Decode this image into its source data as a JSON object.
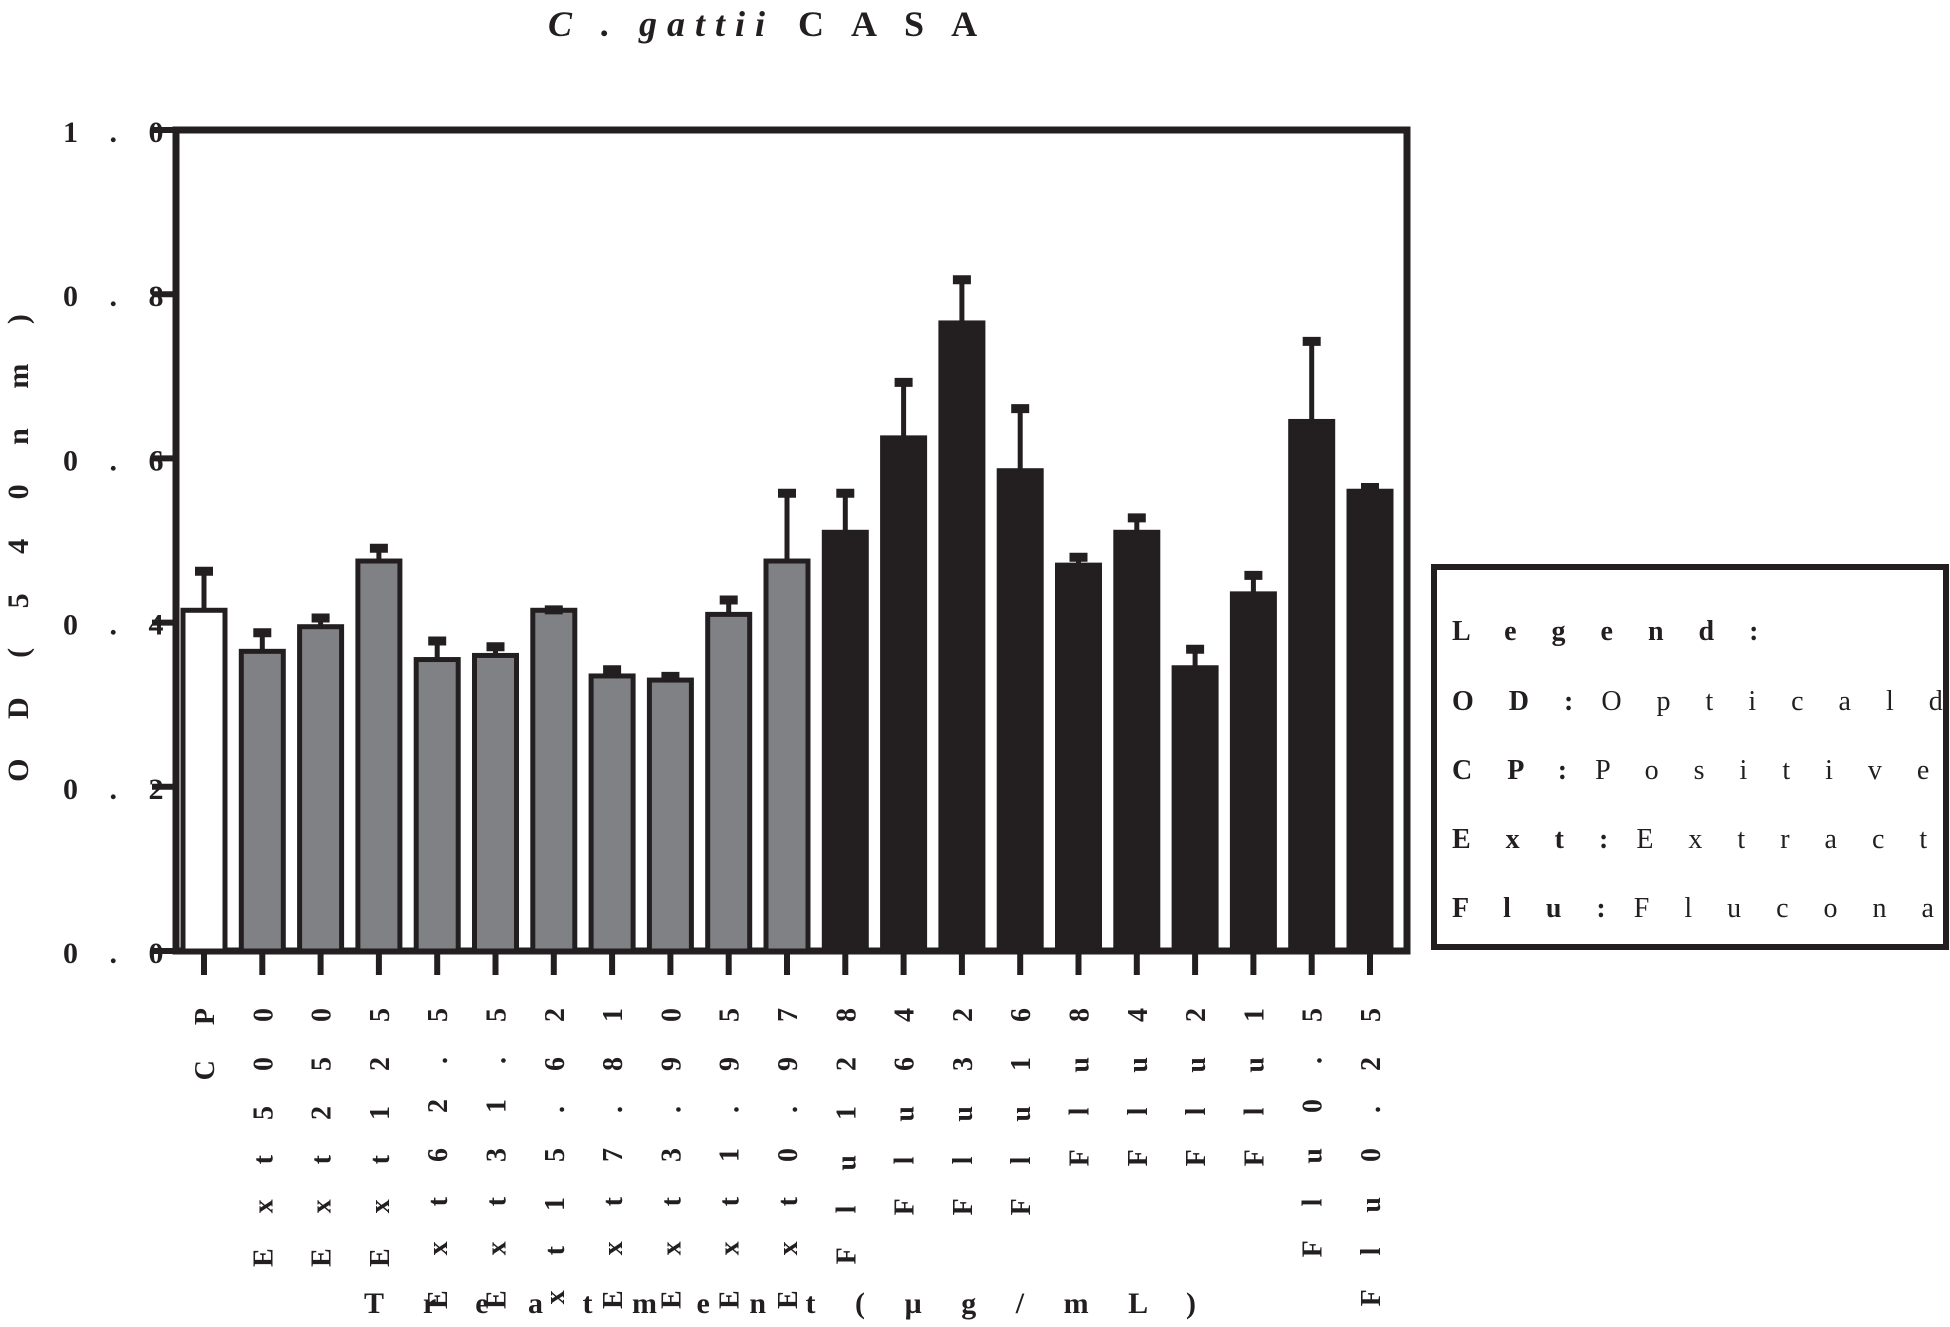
{
  "chart_data": {
    "type": "bar",
    "title_italic": "C . gattii",
    "title_rest": "C A S A",
    "ylabel": "O D  ( 5 4 0  n m )",
    "xlabel": "T r e a t m e n t  ( µ g / m L )",
    "ylim": [
      0,
      1.0
    ],
    "yticks": [
      {
        "value": 0.0,
        "label": "0 . 0"
      },
      {
        "value": 0.2,
        "label": "0 . 2"
      },
      {
        "value": 0.4,
        "label": "0 . 4"
      },
      {
        "value": 0.6,
        "label": "0 . 6"
      },
      {
        "value": 0.8,
        "label": "0 . 8"
      },
      {
        "value": 1.0,
        "label": "1 . 0"
      }
    ],
    "categories": [
      "C P",
      "E x t  5 0 0",
      "E x t  2 5 0",
      "E x t  1 2 5",
      "E x t  6 2 . 5",
      "E x t  3 1 . 5",
      "E x t  1 5 . 6 2",
      "E x t  7 . 8 1",
      "E x t  3 . 9 0",
      "E x t  1 . 9 5",
      "E x t  0 . 9 7",
      "F l u  1 2 8",
      "F l u  6 4",
      "F l u  3 2",
      "F l u  1 6",
      "F l u  8",
      "F l u  4",
      "F l u  2",
      "F l u  1",
      "F l u  0 . 5",
      "F l u  0 . 2 5"
    ],
    "values": [
      0.415,
      0.365,
      0.395,
      0.475,
      0.355,
      0.36,
      0.415,
      0.335,
      0.33,
      0.41,
      0.475,
      0.51,
      0.625,
      0.765,
      0.585,
      0.47,
      0.51,
      0.345,
      0.435,
      0.645,
      0.56
    ],
    "errors": [
      0.05,
      0.025,
      0.013,
      0.018,
      0.025,
      0.013,
      0.003,
      0.01,
      0.007,
      0.02,
      0.085,
      0.05,
      0.07,
      0.055,
      0.078,
      0.012,
      0.02,
      0.025,
      0.025,
      0.1,
      0.007
    ],
    "groups": [
      "control",
      "extract",
      "extract",
      "extract",
      "extract",
      "extract",
      "extract",
      "extract",
      "extract",
      "extract",
      "extract",
      "fluconazole",
      "fluconazole",
      "fluconazole",
      "fluconazole",
      "fluconazole",
      "fluconazole",
      "fluconazole",
      "fluconazole",
      "fluconazole",
      "fluconazole"
    ],
    "colors": {
      "control": "#ffffff",
      "extract": "#808184",
      "fluconazole": "#231f20",
      "outline": "#231f20"
    },
    "grid": false
  },
  "legend": {
    "title": "L e g e n d :",
    "entries": [
      {
        "key": "O D :",
        "text": "O p t i c a l  d e n s i t y"
      },
      {
        "key": "C P :",
        "text": "P o s i t i v e  C o n t r o l"
      },
      {
        "key": "E x t :",
        "text": "E x t r a c t"
      },
      {
        "key": "F l u :",
        "text": "F l u c o n a z o l e"
      }
    ]
  }
}
